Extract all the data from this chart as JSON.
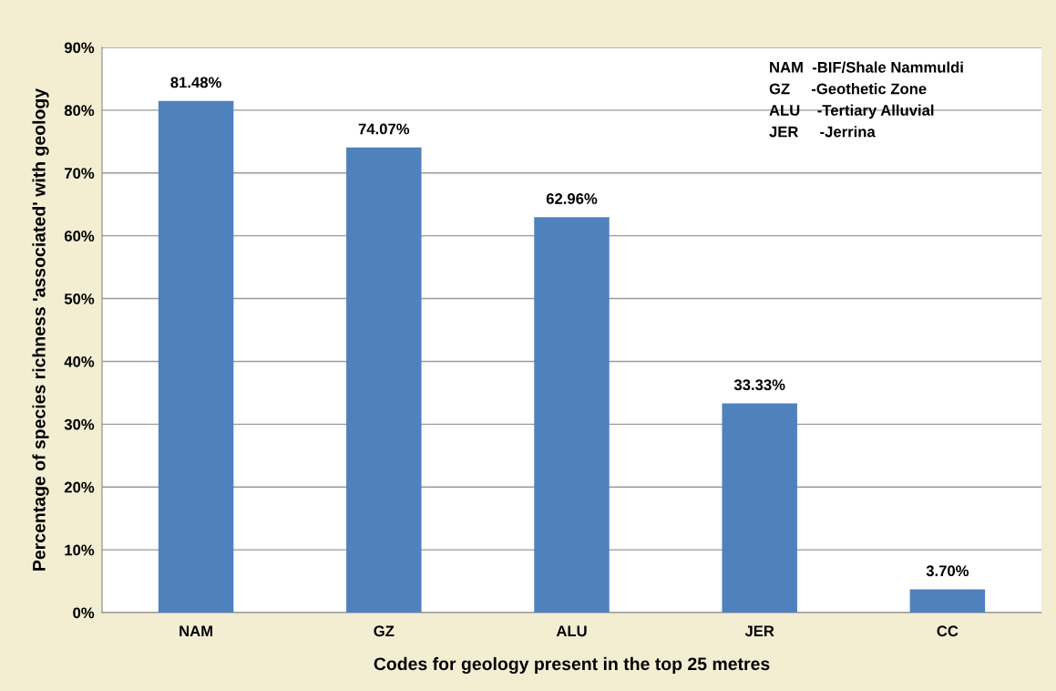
{
  "chart_data": {
    "type": "bar",
    "xlabel": "Codes for geology present in the top 25 metres",
    "ylabel": "Percentage of species richness 'associated' with geology",
    "categories": [
      "NAM",
      "GZ",
      "ALU",
      "JER",
      "CC"
    ],
    "values": [
      81.48,
      74.07,
      62.96,
      33.33,
      3.7
    ],
    "value_labels": [
      "81.48%",
      "74.07%",
      "62.96%",
      "33.33%",
      "3.70%"
    ],
    "color": "#4f81bd",
    "ylim": [
      0,
      90
    ],
    "yticks": [
      {
        "value": 0,
        "label": "0%"
      },
      {
        "value": 10,
        "label": "10%"
      },
      {
        "value": 20,
        "label": "20%"
      },
      {
        "value": 30,
        "label": "30%"
      },
      {
        "value": 40,
        "label": "40%"
      },
      {
        "value": 50,
        "label": "50%"
      },
      {
        "value": 60,
        "label": "60%"
      },
      {
        "value": 70,
        "label": "70%"
      },
      {
        "value": 80,
        "label": "80%"
      },
      {
        "value": 90,
        "label": "90%"
      }
    ],
    "grid": "y",
    "annotations": [
      "NAM  -BIF/Shale Nammuldi",
      "GZ     -Geothetic Zone",
      "ALU    -Tertiary Alluvial",
      "JER     -Jerrina"
    ]
  }
}
